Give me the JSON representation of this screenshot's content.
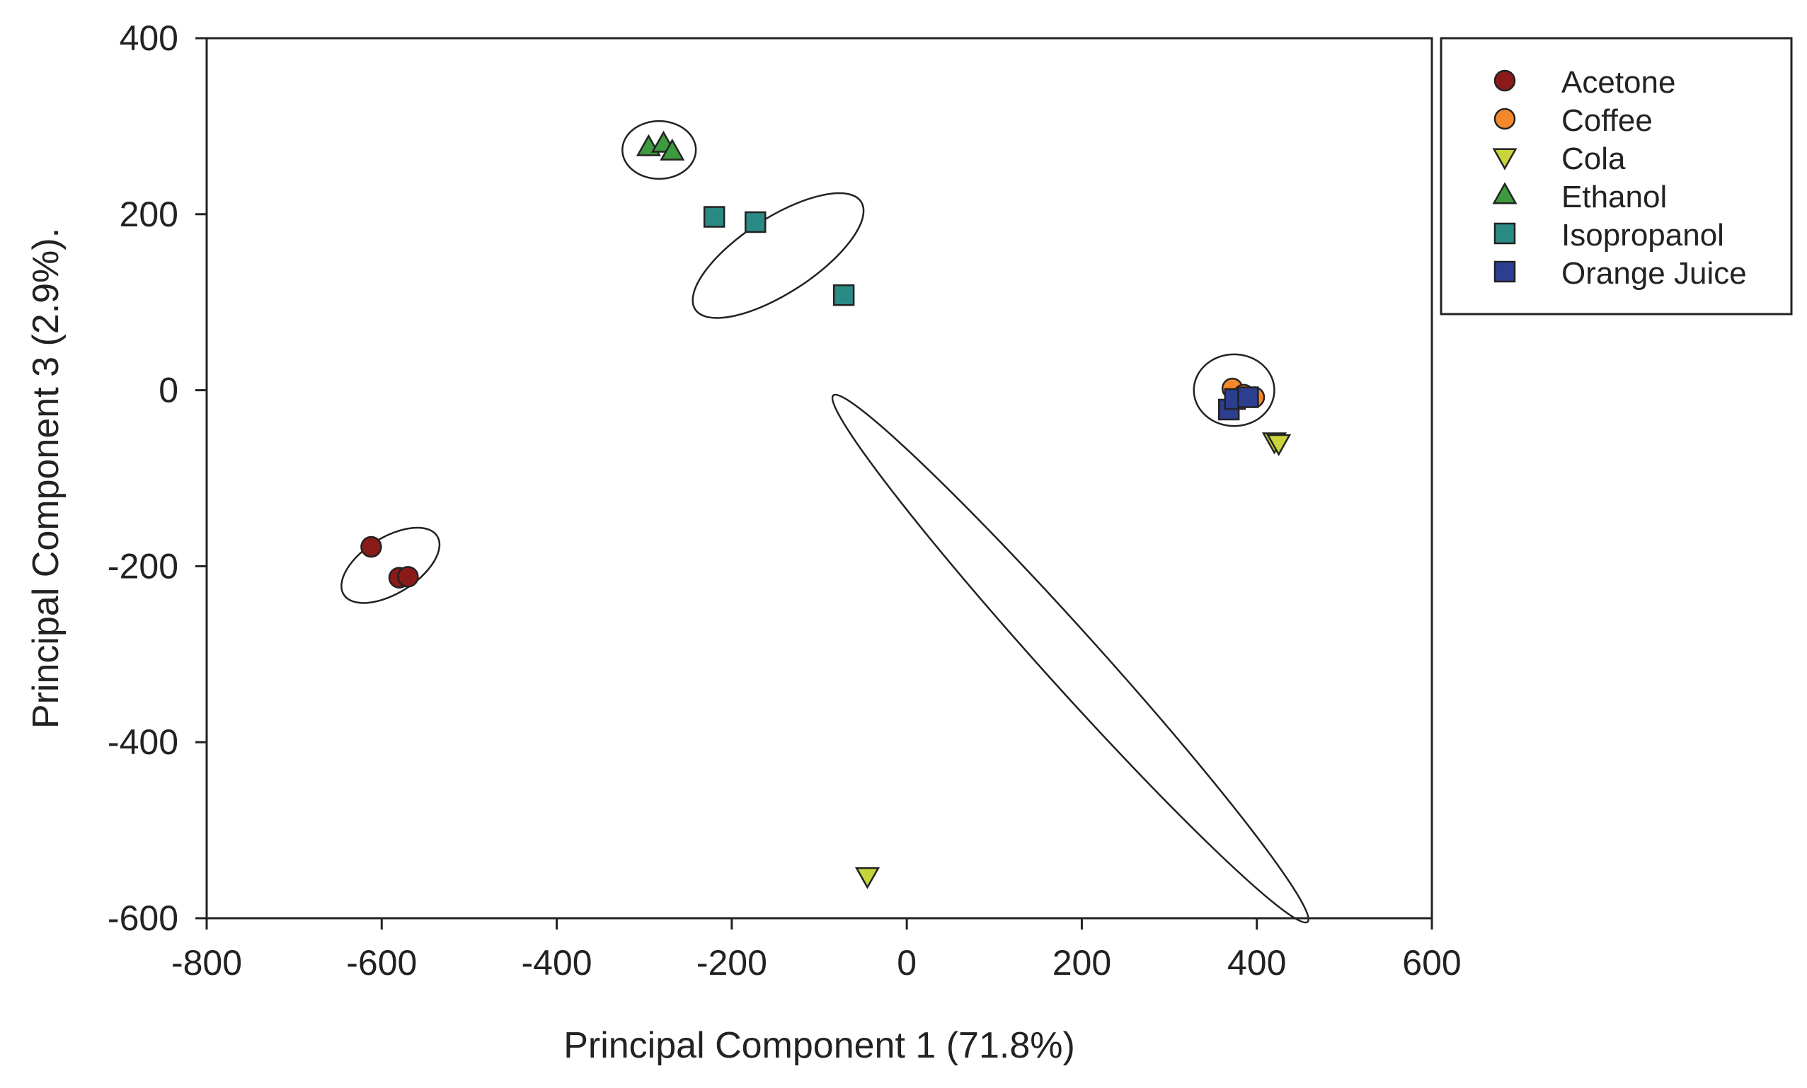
{
  "chart_data": {
    "type": "scatter",
    "title": "",
    "xlabel": "Principal Component 1 (71.8%)",
    "ylabel": "Principal Component 3 (2.9%).",
    "xlim": [
      -800,
      600
    ],
    "ylim": [
      -600,
      400
    ],
    "xticks": [
      -800,
      -600,
      -400,
      -200,
      0,
      200,
      400,
      600
    ],
    "yticks": [
      -600,
      -400,
      -200,
      0,
      200,
      400
    ],
    "xtick_labels": [
      "-800",
      "-600",
      "-400",
      "-200",
      "0",
      "200",
      "400",
      "600"
    ],
    "ytick_labels": [
      "-600",
      "-400",
      "-200",
      "0",
      "200",
      "400"
    ],
    "grid": false,
    "legend_position": "top-right, outside plot",
    "series": [
      {
        "name": "Acetone",
        "marker": "circle",
        "color": "#8b1a1a",
        "points": [
          [
            -612,
            -178
          ],
          [
            -580,
            -213
          ],
          [
            -570,
            -212
          ]
        ]
      },
      {
        "name": "Coffee",
        "marker": "circle",
        "color": "#f5882a",
        "points": [
          [
            372,
            2
          ],
          [
            397,
            -8
          ],
          [
            385,
            -5
          ]
        ]
      },
      {
        "name": "Cola",
        "marker": "triangle-down",
        "color": "#c8d43a",
        "points": [
          [
            -45,
            -552
          ],
          [
            420,
            -58
          ],
          [
            425,
            -60
          ]
        ]
      },
      {
        "name": "Ethanol",
        "marker": "triangle-up",
        "color": "#3e9a3e",
        "points": [
          [
            -295,
            276
          ],
          [
            -278,
            280
          ],
          [
            -268,
            271
          ]
        ]
      },
      {
        "name": "Isopropanol",
        "marker": "square",
        "color": "#2a8a84",
        "points": [
          [
            -220,
            197
          ],
          [
            -173,
            191
          ],
          [
            -72,
            108
          ]
        ]
      },
      {
        "name": "Orange Juice",
        "marker": "square",
        "color": "#2c3e90",
        "points": [
          [
            368,
            -22
          ],
          [
            375,
            -10
          ],
          [
            390,
            -8
          ]
        ]
      }
    ],
    "annotations": [
      {
        "shape": "ellipse",
        "group": "Acetone",
        "cx": -590,
        "cy": -199,
        "rx": 63,
        "ry": 32,
        "angle_deg": 32
      },
      {
        "shape": "ellipse",
        "group": "Ethanol",
        "cx": -283,
        "cy": 273,
        "rx": 42,
        "ry": 33,
        "angle_deg": 0
      },
      {
        "shape": "ellipse",
        "group": "Isopropanol",
        "cx": -147,
        "cy": 153,
        "rx": 113,
        "ry": 43,
        "angle_deg": 33
      },
      {
        "shape": "ellipse",
        "group": "Coffee + Orange Juice",
        "cx": 374,
        "cy": 0,
        "rx": 46,
        "ry": 41,
        "angle_deg": 0
      },
      {
        "shape": "ellipse",
        "group": "Cola",
        "cx": 187,
        "cy": -305,
        "rx": 405,
        "ry": 32,
        "angle_deg": -48
      }
    ]
  }
}
